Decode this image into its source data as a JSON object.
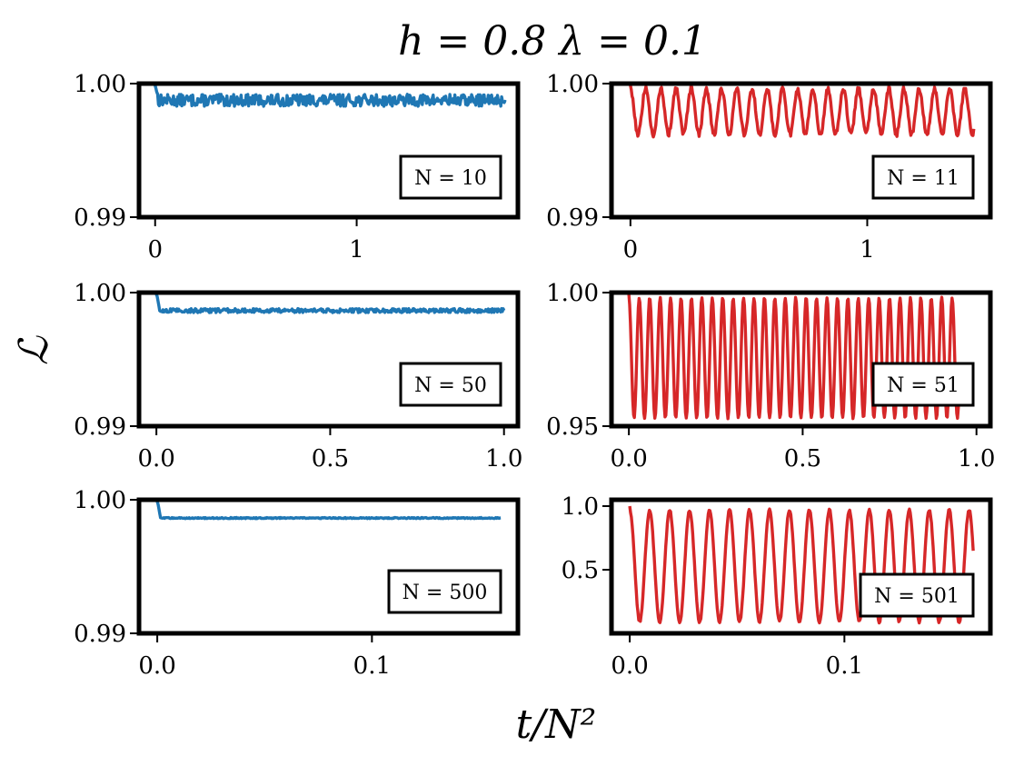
{
  "figure": {
    "suptitle": "h = 0.8    λ = 0.1",
    "ylabel": "ℒ",
    "xlabel": "t/N²"
  },
  "colors": {
    "blue": "#1f77b4",
    "red": "#d62728"
  },
  "chart_data": [
    {
      "type": "line",
      "row": 0,
      "col": 0,
      "color": "blue",
      "legend": "N = 10",
      "xlim": [
        -0.08,
        1.8
      ],
      "ylim": [
        0.99,
        1.0
      ],
      "xticks": [
        0,
        1
      ],
      "xticklabels": [
        "0",
        "1"
      ],
      "yticks": [
        0.99,
        1.0
      ],
      "yticklabels": [
        "0.99",
        "1.00"
      ],
      "pattern": {
        "t_end": 1.74,
        "v0": 1.0,
        "base": 0.99875,
        "noise": 0.00045,
        "amp": 0.0,
        "period": 0.1,
        "phase": 0
      },
      "series": [
        {
          "x": [],
          "y": []
        }
      ]
    },
    {
      "type": "line",
      "row": 0,
      "col": 1,
      "color": "red",
      "legend": "N = 11",
      "xlim": [
        -0.08,
        1.52
      ],
      "ylim": [
        0.99,
        1.0
      ],
      "xticks": [
        0,
        1
      ],
      "xticklabels": [
        "0",
        "1"
      ],
      "yticks": [
        0.99,
        1.0
      ],
      "yticklabels": [
        "0.99",
        "1.00"
      ],
      "pattern": {
        "t_end": 1.45,
        "v0": 1.0,
        "base": 0.9979,
        "noise": 0.0002,
        "amp": 0.0017,
        "period": 0.0642,
        "phase": 0
      },
      "series": [
        {
          "x": [],
          "y": []
        }
      ]
    },
    {
      "type": "line",
      "row": 1,
      "col": 0,
      "color": "blue",
      "legend": "N = 50",
      "xlim": [
        -0.05,
        1.04
      ],
      "ylim": [
        0.99,
        1.0
      ],
      "xticks": [
        0.0,
        0.5,
        1.0
      ],
      "xticklabels": [
        "0.0",
        "0.5",
        "1.0"
      ],
      "yticks": [
        0.99,
        1.0
      ],
      "yticklabels": [
        "0.99",
        "1.00"
      ],
      "pattern": {
        "t_end": 1.0,
        "v0": 1.0,
        "base": 0.99865,
        "noise": 0.00015,
        "amp": 0.0,
        "period": 0.1,
        "phase": 0
      },
      "series": [
        {
          "x": [],
          "y": []
        }
      ]
    },
    {
      "type": "line",
      "row": 1,
      "col": 1,
      "color": "red",
      "legend": "N = 51",
      "xlim": [
        -0.05,
        1.04
      ],
      "ylim": [
        0.95,
        1.0
      ],
      "xticks": [
        0.0,
        0.5,
        1.0
      ],
      "xticklabels": [
        "0.0",
        "0.5",
        "1.0"
      ],
      "yticks": [
        0.95,
        1.0
      ],
      "yticklabels": [
        "0.95",
        "1.00"
      ],
      "pattern": {
        "t_end": 0.95,
        "v0": 1.0,
        "base": 0.9755,
        "noise": 0.0003,
        "amp": 0.0225,
        "period": 0.03,
        "phase": 0
      },
      "series": [
        {
          "x": [],
          "y": []
        }
      ]
    },
    {
      "type": "line",
      "row": 2,
      "col": 0,
      "color": "blue",
      "legend": "N = 500",
      "xlim": [
        -0.0085,
        0.168
      ],
      "ylim": [
        0.99,
        1.0
      ],
      "xticks": [
        0.0,
        0.1
      ],
      "xticklabels": [
        "0.0",
        "0.1"
      ],
      "yticks": [
        0.99,
        1.0
      ],
      "yticklabels": [
        "0.99",
        "1.00"
      ],
      "pattern": {
        "t_end": 0.16,
        "v0": 1.0,
        "base": 0.99863,
        "noise": 4e-05,
        "amp": 0.0,
        "period": 0.1,
        "phase": 0
      },
      "series": [
        {
          "x": [],
          "y": []
        }
      ]
    },
    {
      "type": "line",
      "row": 2,
      "col": 1,
      "color": "red",
      "legend": "N = 501",
      "xlim": [
        -0.0085,
        0.168
      ],
      "ylim": [
        0.0,
        1.05
      ],
      "xticks": [
        0.0,
        0.1
      ],
      "xticklabels": [
        "0.0",
        "0.1"
      ],
      "yticks": [
        0.5,
        1.0
      ],
      "yticklabels": [
        "0.5",
        "1.0"
      ],
      "pattern": {
        "t_end": 0.16,
        "v0": 1.0,
        "base": 0.53,
        "noise": 0.01,
        "amp": 0.44,
        "period": 0.0093,
        "phase": 0
      },
      "series": [
        {
          "x": [],
          "y": []
        }
      ]
    }
  ]
}
